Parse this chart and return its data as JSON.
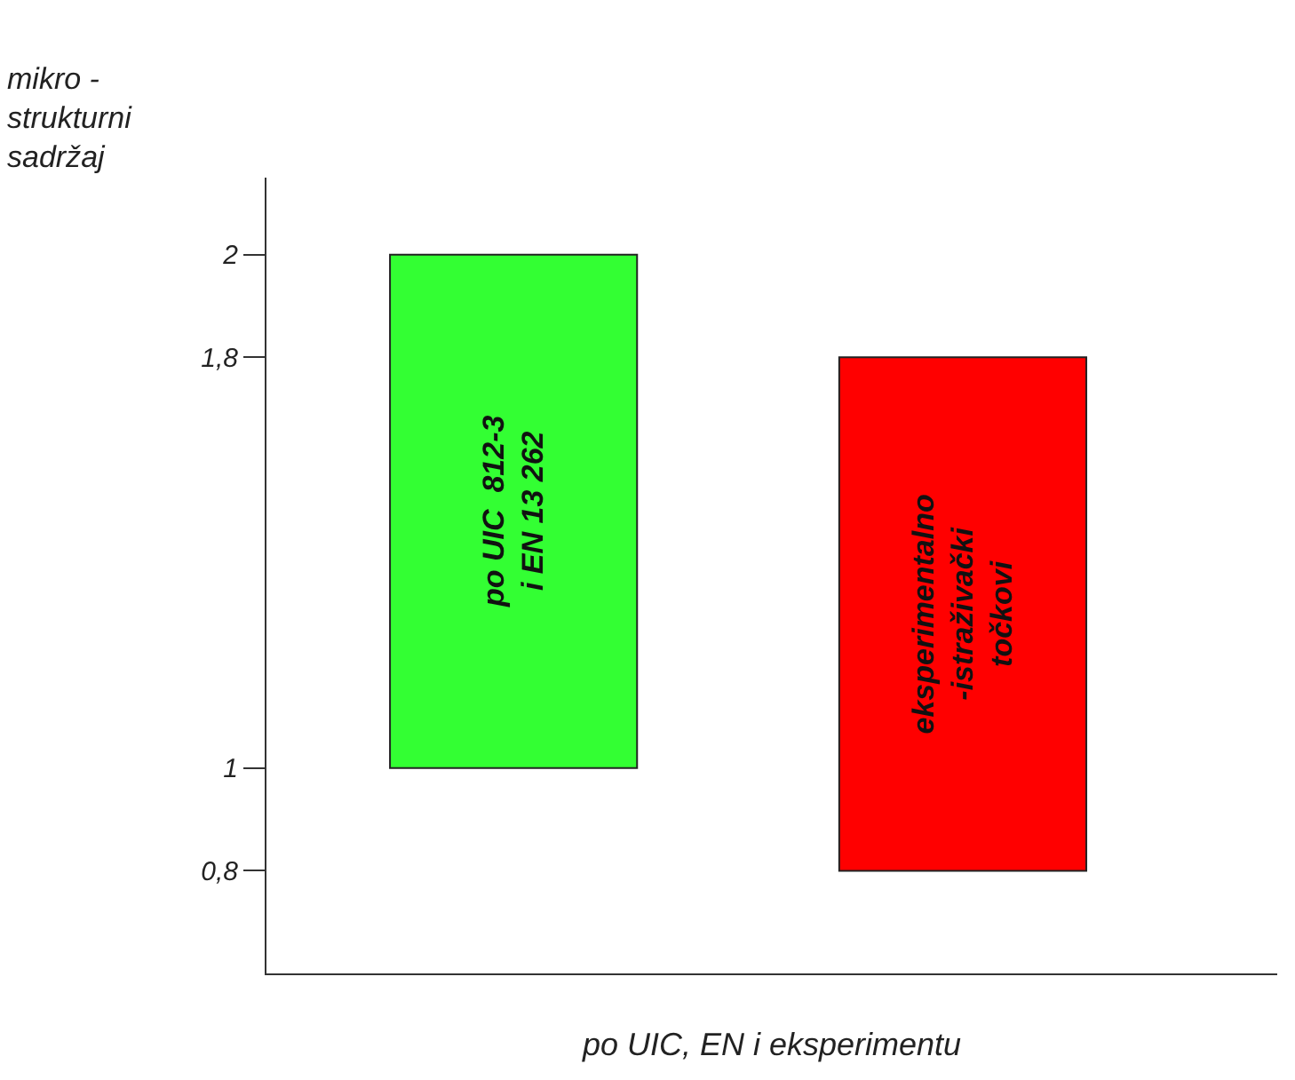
{
  "chart_data": {
    "type": "bar",
    "ylabel": "mikro -\nstrukturni\nsadržaj",
    "xlabel": "po UIC, EN i eksperimentu",
    "categories": [
      null,
      null
    ],
    "series": [
      {
        "name": "po UIC  812-3\ni EN 13 262",
        "color": "#33ff33",
        "values": [
          1,
          null
        ],
        "base": [
          1,
          null
        ]
      },
      {
        "name": "eksperimentalno\n-istraživački\ntočkovi",
        "color": "#ff0000",
        "values": [
          null,
          1
        ],
        "base": [
          null,
          0.8
        ]
      }
    ],
    "ylim": [
      0.6,
      2.15
    ],
    "yticks": [
      {
        "value": 0.8,
        "label": "0,8"
      },
      1,
      {
        "value": 1.8,
        "label": "1,8"
      },
      2
    ],
    "legend": false
  }
}
